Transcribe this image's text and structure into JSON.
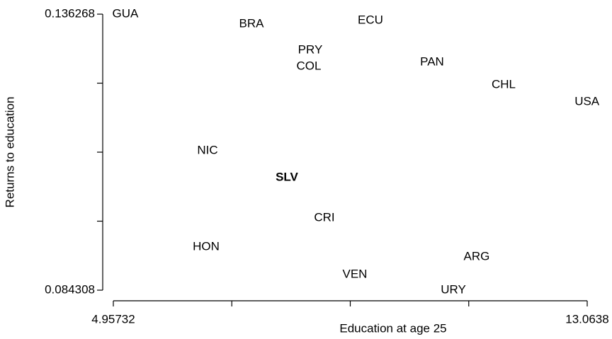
{
  "chart_data": {
    "type": "scatter",
    "x_label": "Education at age 25",
    "y_label": "Returns to education",
    "labels": [
      "GUA",
      "BRA",
      "ECU",
      "PRY",
      "COL",
      "PAN",
      "CHL",
      "USA",
      "NIC",
      "SLV",
      "CRI",
      "HON",
      "ARG",
      "VEN",
      "URY"
    ],
    "x": [
      5.163,
      7.32,
      9.356,
      8.326,
      8.302,
      10.41,
      11.634,
      13.06,
      6.569,
      7.926,
      8.568,
      6.545,
      11.173,
      9.089,
      10.774
    ],
    "values": [
      0.136268,
      0.134402,
      0.135068,
      0.129473,
      0.126409,
      0.127208,
      0.122945,
      0.119747,
      0.110554,
      0.105491,
      0.097898,
      0.092435,
      0.09057,
      0.087239,
      0.084308
    ],
    "highlight": "SLV",
    "color": "#000000",
    "xlim": [
      4.95732,
      13.0638
    ],
    "xticks": [
      4.95732,
      {
        "value": 6.98394,
        "label": null
      },
      {
        "value": 9.01056,
        "label": null
      },
      {
        "value": 11.03717,
        "label": null
      },
      13.0638
    ],
    "ylim": [
      0.084308,
      0.136268
    ],
    "yticks": [
      0.084308,
      {
        "value": 0.097298,
        "label": null
      },
      {
        "value": 0.110288,
        "label": null
      },
      {
        "value": 0.123278,
        "label": null
      },
      0.136268
    ]
  }
}
